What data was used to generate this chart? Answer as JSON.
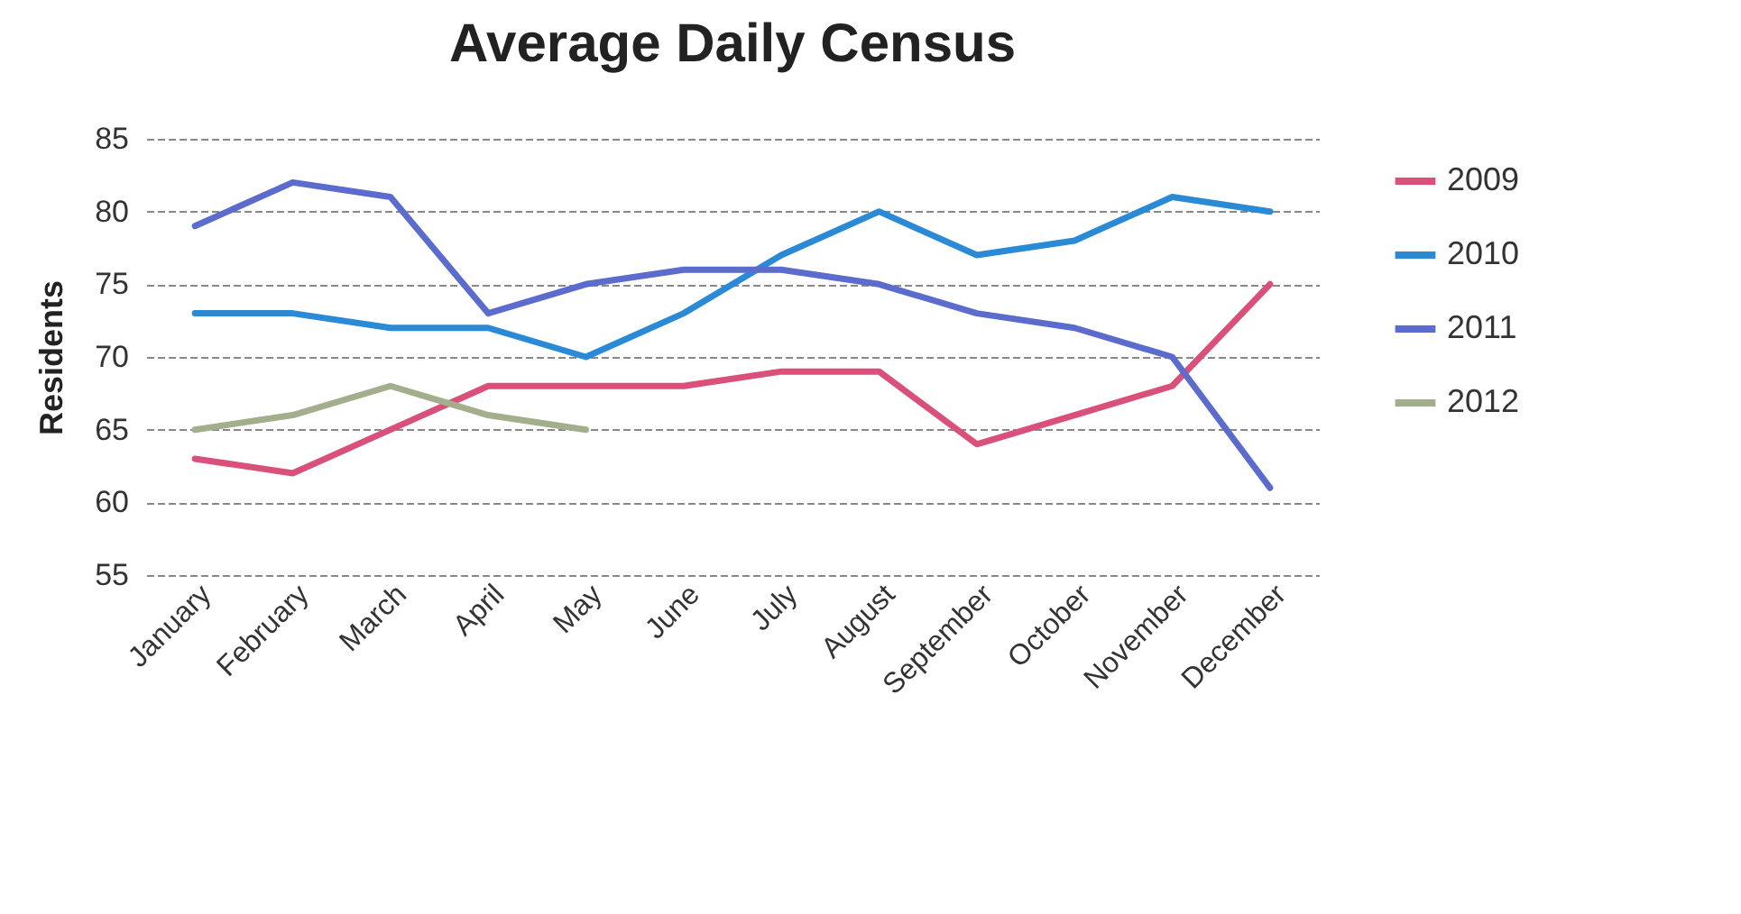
{
  "chart_data": {
    "type": "line",
    "title": "Average Daily Census",
    "ylabel": "Residents",
    "categories": [
      "January",
      "February",
      "March",
      "April",
      "May",
      "June",
      "July",
      "August",
      "September",
      "October",
      "November",
      "December"
    ],
    "series": [
      {
        "name": "2009",
        "color": "#d9507a",
        "values": [
          63,
          62,
          65,
          68,
          68,
          68,
          69,
          69,
          64,
          66,
          68,
          75
        ]
      },
      {
        "name": "2010",
        "color": "#2a8ad6",
        "values": [
          73,
          73,
          72,
          72,
          70,
          73,
          77,
          80,
          77,
          78,
          81,
          80
        ]
      },
      {
        "name": "2011",
        "color": "#5b6ccc",
        "values": [
          79,
          82,
          81,
          73,
          75,
          76,
          76,
          75,
          73,
          72,
          70,
          61
        ]
      },
      {
        "name": "2012",
        "color": "#a3ae8c",
        "values": [
          65,
          66,
          68,
          66,
          65,
          null,
          null,
          null,
          null,
          null,
          null,
          null
        ]
      }
    ],
    "ylim": [
      55,
      85
    ],
    "yticks": [
      55,
      60,
      65,
      70,
      75,
      80,
      85
    ],
    "grid": "y",
    "legend": "right",
    "marker": "none",
    "line_style": "solid"
  }
}
